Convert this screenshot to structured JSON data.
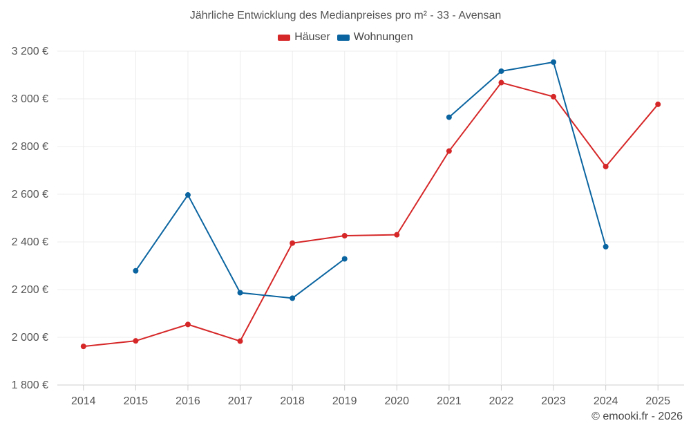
{
  "chart_data": {
    "type": "line",
    "title": "Jährliche Entwicklung des Medianpreises pro m² - 33 - Avensan",
    "categories": [
      "2014",
      "2015",
      "2016",
      "2017",
      "2018",
      "2019",
      "2020",
      "2021",
      "2022",
      "2023",
      "2024",
      "2025"
    ],
    "ylim": [
      1800,
      3200
    ],
    "yticks": [
      1800,
      2000,
      2200,
      2400,
      2600,
      2800,
      3000,
      3200
    ],
    "ytick_labels": [
      "1 800 €",
      "2 000 €",
      "2 200 €",
      "2 400 €",
      "2 600 €",
      "2 800 €",
      "3 000 €",
      "3 200 €"
    ],
    "series": [
      {
        "name": "Häuser",
        "color": "#d62728",
        "values": [
          1962,
          1985,
          2054,
          1984,
          2395,
          2426,
          2430,
          2781,
          3068,
          3009,
          2716,
          2977
        ]
      },
      {
        "name": "Wohnungen",
        "color": "#0a64a0",
        "values": [
          null,
          2279,
          2597,
          2187,
          2164,
          2329,
          null,
          2923,
          3116,
          3154,
          2380,
          null
        ]
      }
    ],
    "grid": true,
    "legend_position": "top-center"
  },
  "credit": "© emooki.fr - 2026"
}
